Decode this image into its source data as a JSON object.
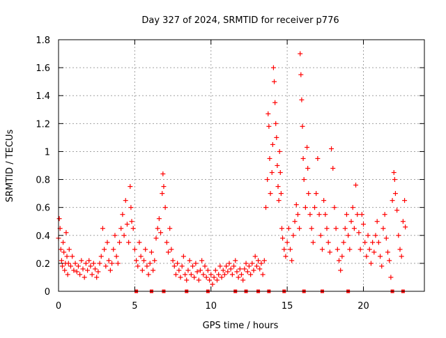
{
  "chart_data": {
    "type": "scatter",
    "title": "Day 327 of 2024, SRMTID for receiver p776",
    "xlabel": "GPS time / hours",
    "ylabel": "SRMTID / TECUs",
    "xlim": [
      0,
      24
    ],
    "ylim": [
      0,
      1.8
    ],
    "xticks": [
      0,
      5,
      10,
      15,
      20
    ],
    "xtick_labels": [
      "0",
      "5",
      "10",
      "15",
      "20"
    ],
    "yticks": [
      0,
      0.2,
      0.4,
      0.6,
      0.8,
      1.0,
      1.2,
      1.4,
      1.6,
      1.8
    ],
    "ytick_labels": [
      "0",
      "0.2",
      "0.4",
      "0.6",
      "0.8",
      "1",
      "1.2",
      "1.4",
      "1.6",
      "1.8"
    ],
    "grid": true,
    "marker_color": "#ff0000",
    "marker": "plus",
    "series": [
      {
        "name": "SRMTID",
        "points": [
          [
            0.0,
            0.38
          ],
          [
            0.05,
            0.52
          ],
          [
            0.1,
            0.45
          ],
          [
            0.15,
            0.3
          ],
          [
            0.2,
            0.22
          ],
          [
            0.25,
            0.18
          ],
          [
            0.3,
            0.35
          ],
          [
            0.35,
            0.28
          ],
          [
            0.4,
            0.15
          ],
          [
            0.45,
            0.2
          ],
          [
            0.5,
            0.42
          ],
          [
            0.55,
            0.25
          ],
          [
            0.6,
            0.12
          ],
          [
            0.65,
            0.2
          ],
          [
            0.7,
            0.3
          ],
          [
            0.8,
            0.18
          ],
          [
            0.9,
            0.25
          ],
          [
            1.0,
            0.15
          ],
          [
            1.1,
            0.2
          ],
          [
            1.2,
            0.14
          ],
          [
            1.3,
            0.18
          ],
          [
            1.4,
            0.12
          ],
          [
            1.5,
            0.22
          ],
          [
            1.6,
            0.16
          ],
          [
            1.7,
            0.1
          ],
          [
            1.8,
            0.2
          ],
          [
            1.9,
            0.15
          ],
          [
            2.0,
            0.22
          ],
          [
            2.1,
            0.18
          ],
          [
            2.2,
            0.12
          ],
          [
            2.3,
            0.2
          ],
          [
            2.4,
            0.16
          ],
          [
            2.5,
            0.1
          ],
          [
            2.6,
            0.14
          ],
          [
            2.7,
            0.2
          ],
          [
            2.8,
            0.25
          ],
          [
            2.9,
            0.45
          ],
          [
            3.0,
            0.3
          ],
          [
            3.1,
            0.18
          ],
          [
            3.2,
            0.35
          ],
          [
            3.3,
            0.22
          ],
          [
            3.4,
            0.15
          ],
          [
            3.5,
            0.2
          ],
          [
            3.6,
            0.3
          ],
          [
            3.7,
            0.4
          ],
          [
            3.8,
            0.25
          ],
          [
            3.9,
            0.2
          ],
          [
            4.0,
            0.35
          ],
          [
            4.1,
            0.45
          ],
          [
            4.2,
            0.55
          ],
          [
            4.3,
            0.4
          ],
          [
            4.4,
            0.65
          ],
          [
            4.5,
            0.48
          ],
          [
            4.6,
            0.35
          ],
          [
            4.7,
            0.75
          ],
          [
            4.75,
            0.6
          ],
          [
            4.8,
            0.5
          ],
          [
            4.9,
            0.45
          ],
          [
            5.0,
            0.3
          ],
          [
            5.1,
            0.22
          ],
          [
            5.2,
            0.18
          ],
          [
            5.3,
            0.35
          ],
          [
            5.4,
            0.25
          ],
          [
            5.5,
            0.15
          ],
          [
            5.6,
            0.22
          ],
          [
            5.7,
            0.3
          ],
          [
            5.8,
            0.18
          ],
          [
            5.9,
            0.12
          ],
          [
            6.0,
            0.2
          ],
          [
            6.1,
            0.28
          ],
          [
            6.2,
            0.15
          ],
          [
            6.3,
            0.22
          ],
          [
            6.4,
            0.38
          ],
          [
            6.5,
            0.45
          ],
          [
            6.6,
            0.52
          ],
          [
            6.7,
            0.42
          ],
          [
            6.8,
            0.7
          ],
          [
            6.85,
            0.84
          ],
          [
            6.9,
            0.75
          ],
          [
            7.0,
            0.6
          ],
          [
            7.1,
            0.35
          ],
          [
            7.2,
            0.28
          ],
          [
            7.3,
            0.45
          ],
          [
            7.4,
            0.3
          ],
          [
            7.5,
            0.22
          ],
          [
            7.6,
            0.18
          ],
          [
            7.7,
            0.12
          ],
          [
            7.8,
            0.2
          ],
          [
            7.9,
            0.15
          ],
          [
            8.0,
            0.1
          ],
          [
            8.1,
            0.18
          ],
          [
            8.2,
            0.25
          ],
          [
            8.3,
            0.12
          ],
          [
            8.4,
            0.08
          ],
          [
            8.5,
            0.15
          ],
          [
            8.6,
            0.22
          ],
          [
            8.7,
            0.12
          ],
          [
            8.8,
            0.18
          ],
          [
            8.9,
            0.1
          ],
          [
            9.0,
            0.2
          ],
          [
            9.1,
            0.14
          ],
          [
            9.2,
            0.08
          ],
          [
            9.3,
            0.15
          ],
          [
            9.4,
            0.22
          ],
          [
            9.5,
            0.12
          ],
          [
            9.6,
            0.18
          ],
          [
            9.7,
            0.1
          ],
          [
            9.8,
            0.15
          ],
          [
            9.9,
            0.08
          ],
          [
            10.0,
            0.12
          ],
          [
            10.1,
            0.05
          ],
          [
            10.2,
            0.1
          ],
          [
            10.3,
            0.15
          ],
          [
            10.4,
            0.08
          ],
          [
            10.5,
            0.12
          ],
          [
            10.6,
            0.18
          ],
          [
            10.7,
            0.1
          ],
          [
            10.8,
            0.15
          ],
          [
            10.9,
            0.12
          ],
          [
            11.0,
            0.18
          ],
          [
            11.1,
            0.14
          ],
          [
            11.2,
            0.2
          ],
          [
            11.3,
            0.16
          ],
          [
            11.4,
            0.12
          ],
          [
            11.5,
            0.18
          ],
          [
            11.6,
            0.22
          ],
          [
            11.7,
            0.14
          ],
          [
            11.8,
            0.1
          ],
          [
            11.9,
            0.16
          ],
          [
            12.0,
            0.12
          ],
          [
            12.1,
            0.08
          ],
          [
            12.2,
            0.16
          ],
          [
            12.3,
            0.2
          ],
          [
            12.4,
            0.14
          ],
          [
            12.5,
            0.18
          ],
          [
            12.6,
            0.12
          ],
          [
            12.7,
            0.2
          ],
          [
            12.8,
            0.15
          ],
          [
            12.9,
            0.25
          ],
          [
            13.0,
            0.18
          ],
          [
            13.1,
            0.22
          ],
          [
            13.2,
            0.16
          ],
          [
            13.3,
            0.2
          ],
          [
            13.4,
            0.12
          ],
          [
            13.5,
            0.22
          ],
          [
            13.6,
            0.6
          ],
          [
            13.7,
            0.8
          ],
          [
            13.75,
            1.27
          ],
          [
            13.8,
            1.18
          ],
          [
            13.85,
            0.95
          ],
          [
            13.9,
            0.7
          ],
          [
            14.0,
            0.85
          ],
          [
            14.05,
            1.05
          ],
          [
            14.1,
            1.6
          ],
          [
            14.15,
            1.5
          ],
          [
            14.2,
            1.35
          ],
          [
            14.25,
            1.2
          ],
          [
            14.3,
            1.1
          ],
          [
            14.35,
            0.9
          ],
          [
            14.4,
            0.75
          ],
          [
            14.45,
            0.65
          ],
          [
            14.5,
            1.0
          ],
          [
            14.55,
            0.85
          ],
          [
            14.6,
            0.7
          ],
          [
            14.65,
            0.45
          ],
          [
            14.7,
            0.38
          ],
          [
            14.8,
            0.3
          ],
          [
            14.9,
            0.25
          ],
          [
            15.0,
            0.35
          ],
          [
            15.1,
            0.45
          ],
          [
            15.2,
            0.3
          ],
          [
            15.3,
            0.22
          ],
          [
            15.4,
            0.4
          ],
          [
            15.5,
            0.5
          ],
          [
            15.6,
            0.62
          ],
          [
            15.7,
            0.55
          ],
          [
            15.8,
            0.45
          ],
          [
            15.85,
            1.7
          ],
          [
            15.9,
            1.55
          ],
          [
            15.95,
            1.37
          ],
          [
            16.0,
            1.18
          ],
          [
            16.05,
            0.95
          ],
          [
            16.1,
            0.8
          ],
          [
            16.2,
            0.6
          ],
          [
            16.3,
            1.03
          ],
          [
            16.35,
            0.88
          ],
          [
            16.4,
            0.7
          ],
          [
            16.5,
            0.55
          ],
          [
            16.6,
            0.45
          ],
          [
            16.7,
            0.35
          ],
          [
            16.8,
            0.6
          ],
          [
            16.9,
            0.7
          ],
          [
            17.0,
            0.95
          ],
          [
            17.1,
            0.55
          ],
          [
            17.2,
            0.4
          ],
          [
            17.3,
            0.3
          ],
          [
            17.4,
            0.65
          ],
          [
            17.5,
            0.55
          ],
          [
            17.6,
            0.45
          ],
          [
            17.7,
            0.35
          ],
          [
            17.8,
            0.28
          ],
          [
            17.9,
            1.02
          ],
          [
            18.0,
            0.88
          ],
          [
            18.1,
            0.6
          ],
          [
            18.2,
            0.45
          ],
          [
            18.3,
            0.3
          ],
          [
            18.4,
            0.22
          ],
          [
            18.5,
            0.15
          ],
          [
            18.6,
            0.25
          ],
          [
            18.7,
            0.35
          ],
          [
            18.8,
            0.45
          ],
          [
            18.9,
            0.55
          ],
          [
            19.0,
            0.4
          ],
          [
            19.1,
            0.3
          ],
          [
            19.2,
            0.5
          ],
          [
            19.3,
            0.6
          ],
          [
            19.4,
            0.45
          ],
          [
            19.5,
            0.76
          ],
          [
            19.6,
            0.55
          ],
          [
            19.7,
            0.42
          ],
          [
            19.8,
            0.3
          ],
          [
            19.9,
            0.55
          ],
          [
            20.0,
            0.48
          ],
          [
            20.1,
            0.35
          ],
          [
            20.2,
            0.25
          ],
          [
            20.3,
            0.4
          ],
          [
            20.4,
            0.3
          ],
          [
            20.5,
            0.2
          ],
          [
            20.6,
            0.35
          ],
          [
            20.7,
            0.28
          ],
          [
            20.8,
            0.4
          ],
          [
            20.9,
            0.5
          ],
          [
            21.0,
            0.35
          ],
          [
            21.1,
            0.25
          ],
          [
            21.2,
            0.18
          ],
          [
            21.3,
            0.45
          ],
          [
            21.4,
            0.55
          ],
          [
            21.5,
            0.38
          ],
          [
            21.6,
            0.28
          ],
          [
            21.7,
            0.22
          ],
          [
            21.8,
            0.1
          ],
          [
            21.9,
            0.65
          ],
          [
            22.0,
            0.85
          ],
          [
            22.05,
            0.8
          ],
          [
            22.1,
            0.7
          ],
          [
            22.2,
            0.58
          ],
          [
            22.3,
            0.4
          ],
          [
            22.4,
            0.3
          ],
          [
            22.5,
            0.25
          ],
          [
            22.6,
            0.5
          ],
          [
            22.7,
            0.65
          ],
          [
            22.75,
            0.46
          ]
        ]
      }
    ],
    "baseline_marker_x": [
      5.1,
      6.1,
      6.9,
      8.4,
      9.8,
      11.6,
      12.3,
      13.1,
      13.8,
      14.8,
      16.1,
      17.3,
      19.0,
      21.9,
      22.6
    ]
  }
}
